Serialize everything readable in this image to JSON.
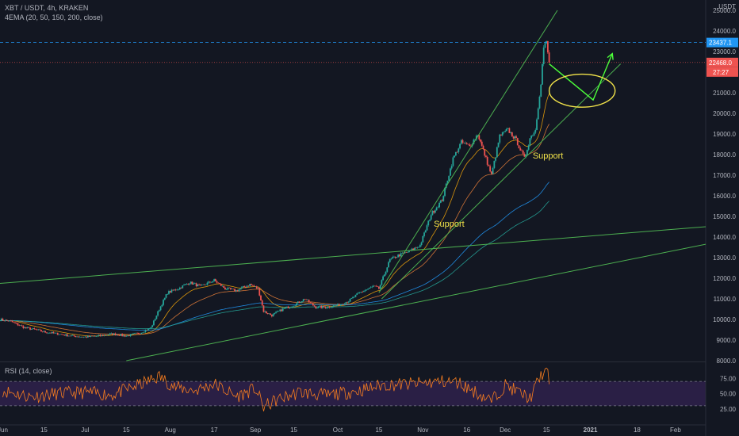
{
  "header": {
    "title": "XBT / USDT, 4h, KRAKEN",
    "indicator": "4EMA (20, 50, 150, 200, close)",
    "rsi": "RSI (14, close)"
  },
  "chart_data": {
    "type": "line",
    "symbol": "XBT / USDT",
    "interval": "4h",
    "exchange": "KRAKEN",
    "ylim": [
      8000,
      25500
    ],
    "y_ticks": [
      "8000.0",
      "9000.0",
      "10000.0",
      "11000.0",
      "12000.0",
      "13000.0",
      "14000.0",
      "15000.0",
      "16000.0",
      "17000.0",
      "18000.0",
      "19000.0",
      "20000.0",
      "21000.0",
      "22000.0",
      "23000.0",
      "24000.0",
      "25000.0"
    ],
    "y_unit": "USDT",
    "x_ticks": [
      "Jun",
      "15",
      "Jul",
      "15",
      "Aug",
      "17",
      "Sep",
      "15",
      "Oct",
      "15",
      "Nov",
      "16",
      "Dec",
      "15",
      "2021",
      "18",
      "Feb"
    ],
    "x_tick_days": [
      0,
      15,
      30,
      45,
      61,
      77,
      92,
      106,
      122,
      137,
      153,
      169,
      183,
      198,
      214,
      231,
      245
    ],
    "price_anchors": [
      [
        -1,
        10000
      ],
      [
        3,
        9900
      ],
      [
        8,
        9600
      ],
      [
        12,
        9500
      ],
      [
        15,
        9400
      ],
      [
        20,
        9300
      ],
      [
        25,
        9200
      ],
      [
        30,
        9150
      ],
      [
        35,
        9200
      ],
      [
        40,
        9300
      ],
      [
        45,
        9200
      ],
      [
        50,
        9350
      ],
      [
        54,
        9600
      ],
      [
        57,
        10500
      ],
      [
        60,
        11300
      ],
      [
        64,
        11500
      ],
      [
        68,
        11800
      ],
      [
        72,
        11600
      ],
      [
        77,
        11900
      ],
      [
        81,
        11500
      ],
      [
        85,
        11400
      ],
      [
        90,
        11700
      ],
      [
        93,
        11500
      ],
      [
        95,
        10400
      ],
      [
        98,
        10200
      ],
      [
        102,
        10500
      ],
      [
        106,
        10700
      ],
      [
        110,
        11000
      ],
      [
        114,
        10600
      ],
      [
        118,
        10600
      ],
      [
        122,
        10700
      ],
      [
        126,
        10900
      ],
      [
        130,
        11300
      ],
      [
        135,
        11600
      ],
      [
        137,
        11500
      ],
      [
        141,
        12900
      ],
      [
        144,
        13100
      ],
      [
        148,
        13300
      ],
      [
        152,
        13600
      ],
      [
        156,
        15100
      ],
      [
        160,
        15800
      ],
      [
        164,
        17800
      ],
      [
        167,
        18600
      ],
      [
        170,
        18400
      ],
      [
        173,
        19000
      ],
      [
        176,
        17800
      ],
      [
        178,
        17000
      ],
      [
        181,
        18900
      ],
      [
        184,
        19200
      ],
      [
        187,
        18700
      ],
      [
        190,
        17800
      ],
      [
        192,
        18800
      ],
      [
        194,
        19200
      ],
      [
        196,
        21500
      ],
      [
        197,
        23200
      ],
      [
        198,
        23437.1
      ],
      [
        199,
        22468
      ]
    ],
    "ema_periods": [
      20,
      50,
      150,
      200
    ],
    "ema_colors": [
      "#f0a30a",
      "#e07b39",
      "#2196f3",
      "#26a69a"
    ],
    "rsi": {
      "period": 14,
      "ylim": [
        0,
        100
      ],
      "y_ticks": [
        "25.00",
        "50.00",
        "75.00"
      ],
      "levels": [
        30,
        70
      ],
      "anchors": [
        [
          0,
          55
        ],
        [
          10,
          45
        ],
        [
          20,
          50
        ],
        [
          30,
          52
        ],
        [
          40,
          48
        ],
        [
          50,
          65
        ],
        [
          57,
          78
        ],
        [
          63,
          60
        ],
        [
          70,
          55
        ],
        [
          77,
          66
        ],
        [
          85,
          45
        ],
        [
          92,
          58
        ],
        [
          95,
          28
        ],
        [
          100,
          40
        ],
        [
          108,
          52
        ],
        [
          118,
          47
        ],
        [
          130,
          55
        ],
        [
          138,
          64
        ],
        [
          150,
          66
        ],
        [
          160,
          70
        ],
        [
          166,
          68
        ],
        [
          170,
          58
        ],
        [
          175,
          45
        ],
        [
          178,
          38
        ],
        [
          183,
          64
        ],
        [
          188,
          52
        ],
        [
          192,
          42
        ],
        [
          196,
          80
        ],
        [
          198,
          88
        ],
        [
          199,
          70
        ]
      ],
      "color": "#f57c20"
    },
    "trendlines": [
      {
        "from": [
          -1,
          11750
        ],
        "to": [
          256,
          14500
        ],
        "color": "#4caf50"
      },
      {
        "from": [
          45,
          8000
        ],
        "to": [
          256,
          13650
        ],
        "color": "#4caf50"
      },
      {
        "from": [
          137,
          11300
        ],
        "to": [
          202,
          25000
        ],
        "color": "#4caf50"
      },
      {
        "from": [
          138,
          11000
        ],
        "to": [
          225,
          22400
        ],
        "color": "#4caf50"
      }
    ],
    "annotations": [
      {
        "text": "Support",
        "at": [
          193,
          17800
        ]
      },
      {
        "text": "Support",
        "at": [
          157,
          14500
        ]
      }
    ],
    "projection": {
      "points": [
        [
          199,
          22400
        ],
        [
          215,
          20650
        ],
        [
          222,
          22900
        ]
      ],
      "color": "#4cff3a"
    },
    "ellipse": {
      "center": [
        211,
        21100
      ],
      "rx_days": 12,
      "ry_price": 800,
      "color": "#f2e34a"
    },
    "price_tags": [
      {
        "value": 23437.1,
        "label": "23437.1",
        "color": "#2196f3",
        "line": "dashed"
      },
      {
        "value": 22468.0,
        "label": "22468.0",
        "color": "#ef5350",
        "line": "dotted"
      }
    ],
    "countdown": "27:27",
    "axis_top_label": "USDT"
  }
}
